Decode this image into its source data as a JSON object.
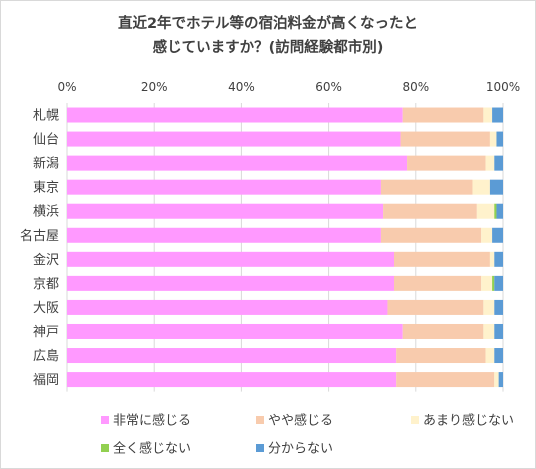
{
  "chart_data": {
    "type": "bar",
    "orientation": "horizontal",
    "stacked": "percent",
    "title_lines": [
      "直近2年でホテル等の宿泊料金が高くなったと",
      "感じていますか？(訪問経験都市別)"
    ],
    "x_ticks": [
      "0%",
      "20%",
      "40%",
      "60%",
      "80%",
      "100%"
    ],
    "xlim": [
      0,
      100
    ],
    "grid": true,
    "legend_position": "bottom",
    "categories": [
      "札幌",
      "仙台",
      "新潟",
      "東京",
      "横浜",
      "名古屋",
      "金沢",
      "京都",
      "大阪",
      "神戸",
      "広島",
      "福岡"
    ],
    "series": [
      {
        "name": "非常に感じる",
        "color": "#ff99ff",
        "values": [
          77,
          76.5,
          78,
          72,
          72.5,
          72,
          75,
          75,
          73.5,
          77,
          75.5,
          75.5
        ]
      },
      {
        "name": "やや感じる",
        "color": "#f8cbad",
        "values": [
          18.5,
          20.5,
          18,
          21,
          21.5,
          23,
          22,
          20,
          22,
          18.5,
          20.5,
          22.5
        ]
      },
      {
        "name": "あまり感じない",
        "color": "#fff2cc",
        "values": [
          2,
          1.5,
          2,
          4,
          4,
          2.5,
          1,
          2.5,
          2.5,
          2.5,
          2,
          1
        ]
      },
      {
        "name": "全く感じない",
        "color": "#92d050",
        "values": [
          0,
          0,
          0,
          0,
          0.5,
          0,
          0,
          0.5,
          0,
          0,
          0,
          0
        ]
      },
      {
        "name": "分からない",
        "color": "#5b9bd5",
        "values": [
          2.5,
          1.5,
          2,
          3,
          1.5,
          2.5,
          2,
          2,
          2,
          2,
          2,
          1
        ]
      }
    ]
  }
}
